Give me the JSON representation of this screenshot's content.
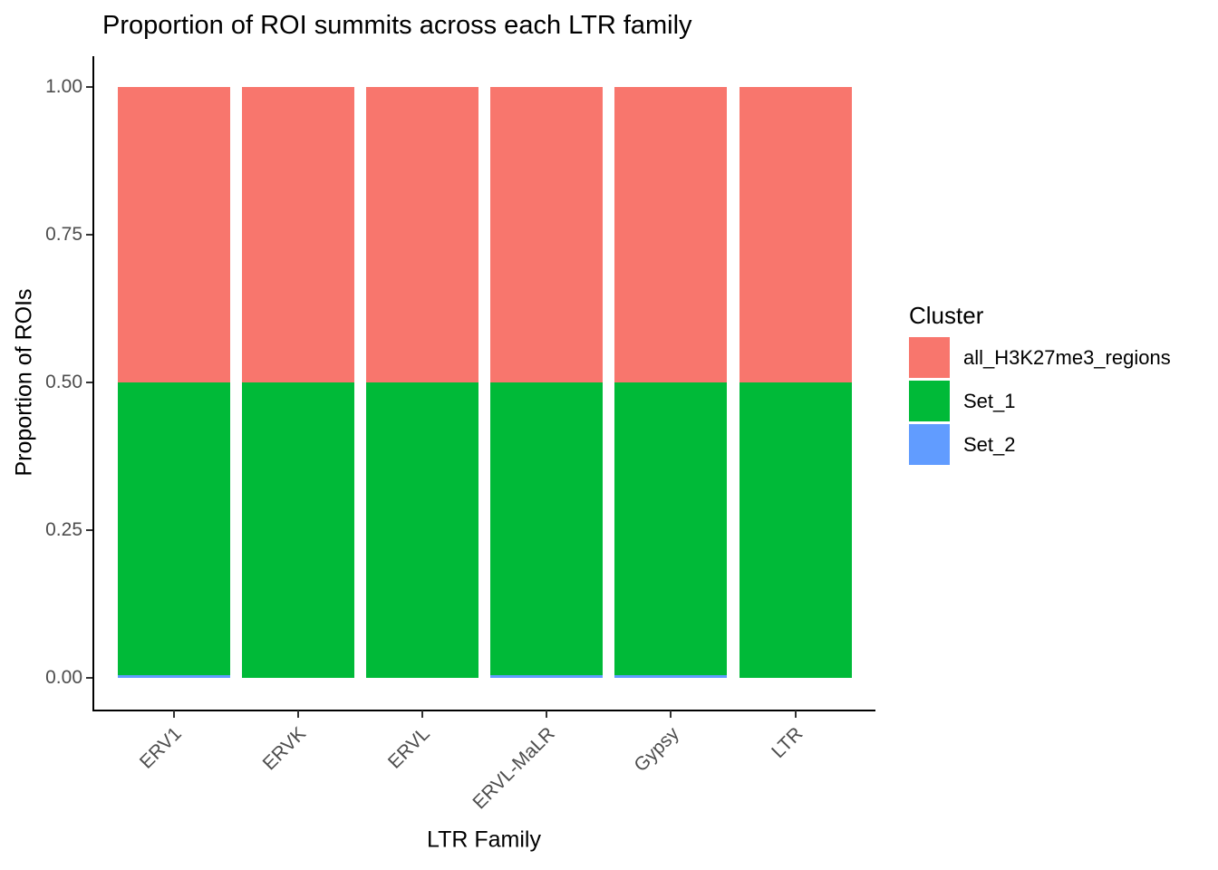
{
  "title": "Proportion of ROI summits across each LTR family",
  "legend": {
    "title": "Cluster",
    "position": "right"
  },
  "colors": {
    "background": "#FFFFFF",
    "axis_line": "#000000",
    "tick_mark": "#333333",
    "axis_tick_text": "#4D4D4D",
    "title_text": "#000000",
    "series_red": "#F8766D",
    "series_green": "#00BA38",
    "series_blue": "#619CFF"
  },
  "chart_data": {
    "type": "bar",
    "stacked": true,
    "stack_order_bottom_to_top": [
      "Set_2",
      "Set_1",
      "all_H3K27me3_regions"
    ],
    "title": "Proportion of ROI summits across each LTR family",
    "xlabel": "LTR Family",
    "ylabel": "Proportion of ROIs",
    "categories": [
      "ERV1",
      "ERVK",
      "ERVL",
      "ERVL-MaLR",
      "Gypsy",
      "LTR"
    ],
    "series": [
      {
        "name": "all_H3K27me3_regions",
        "color": "#F8766D",
        "values": [
          0.5,
          0.5,
          0.5,
          0.5,
          0.5,
          0.5
        ]
      },
      {
        "name": "Set_1",
        "color": "#00BA38",
        "values": [
          0.495,
          0.5,
          0.5,
          0.495,
          0.495,
          0.5
        ]
      },
      {
        "name": "Set_2",
        "color": "#619CFF",
        "values": [
          0.005,
          0.0,
          0.0,
          0.005,
          0.005,
          0.0
        ]
      }
    ],
    "ylim": [
      0,
      1
    ],
    "y_ticks": {
      "values": [
        0.0,
        0.25,
        0.5,
        0.75,
        1.0
      ],
      "labels": [
        "0.00",
        "0.25",
        "0.50",
        "0.75",
        "1.00"
      ]
    },
    "grid": false,
    "legend_position": "right",
    "x_tick_label_angle_deg": 45
  }
}
